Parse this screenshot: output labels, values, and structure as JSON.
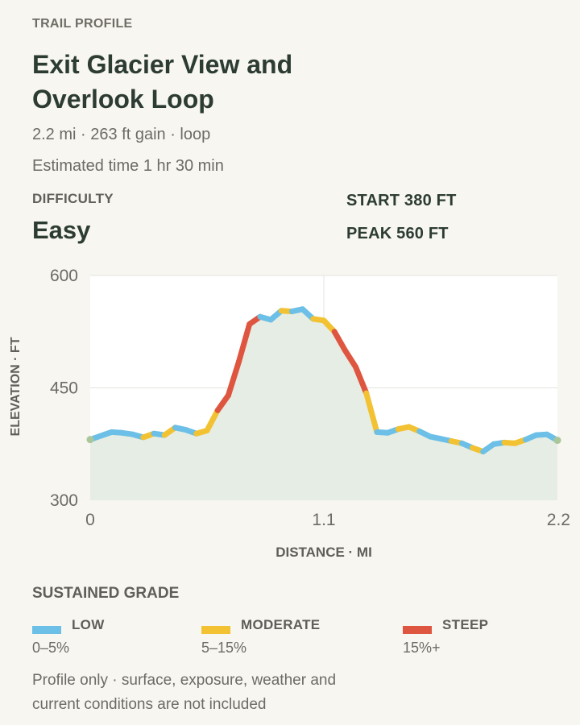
{
  "header": {
    "eyebrow": "TRAIL PROFILE",
    "title": "Exit Glacier View and Overlook Loop",
    "summary": "2.2 mi · 263 ft gain · loop",
    "estimate": "Estimated time 1 hr 30 min"
  },
  "stats": {
    "difficulty_label": "DIFFICULTY",
    "difficulty_value": "Easy",
    "start": "START 380 FT",
    "peak": "PEAK 560 FT"
  },
  "chart_data": {
    "type": "line",
    "xlabel": "DISTANCE · MI",
    "ylabel": "ELEVATION · FT",
    "xlim": [
      0,
      2.2
    ],
    "ylim": [
      300,
      600
    ],
    "xticks": [
      "0",
      "1.1",
      "2.2"
    ],
    "yticks": [
      "600",
      "450",
      "300"
    ],
    "grid": true,
    "area_fill": true,
    "series": [
      {
        "x": [
          0,
          0.05,
          0.1,
          0.15,
          0.2,
          0.25,
          0.3,
          0.35,
          0.4,
          0.45,
          0.5,
          0.55,
          0.6,
          0.65,
          0.7,
          0.75,
          0.8,
          0.85,
          0.9,
          0.95,
          1.0,
          1.05,
          1.1,
          1.15,
          1.2,
          1.25,
          1.3,
          1.35,
          1.4,
          1.45,
          1.5,
          1.55,
          1.6,
          1.65,
          1.7,
          1.75,
          1.8,
          1.85,
          1.9,
          1.95,
          2.0,
          2.05,
          2.1,
          2.15,
          2.2
        ],
        "y": [
          381,
          386,
          391,
          390,
          388,
          384,
          389,
          387,
          397,
          394,
          389,
          393,
          420,
          440,
          485,
          535,
          545,
          541,
          553,
          552,
          555,
          542,
          540,
          525,
          500,
          478,
          443,
          391,
          390,
          395,
          398,
          392,
          385,
          382,
          379,
          376,
          370,
          365,
          375,
          377,
          376,
          381,
          387,
          388,
          380
        ],
        "grade": [
          "low",
          "low",
          "low",
          "low",
          "low",
          "moderate",
          "low",
          "moderate",
          "low",
          "low",
          "moderate",
          "moderate",
          "steep",
          "steep",
          "steep",
          "steep",
          "low",
          "low",
          "moderate",
          "low",
          "low",
          "moderate",
          "moderate",
          "steep",
          "steep",
          "steep",
          "moderate",
          "low",
          "low",
          "moderate",
          "moderate",
          "low",
          "low",
          "low",
          "moderate",
          "low",
          "moderate",
          "low",
          "low",
          "moderate",
          "moderate",
          "low",
          "low",
          "low"
        ]
      }
    ],
    "legend": {
      "title": "SUSTAINED GRADE",
      "items": [
        {
          "key": "low",
          "name": "LOW",
          "range": "0–5%",
          "color": "#6cbfe6"
        },
        {
          "key": "moderate",
          "name": "MODERATE",
          "range": "5–15%",
          "color": "#f2c233"
        },
        {
          "key": "steep",
          "name": "STEEP",
          "range": "15%+",
          "color": "#de5640"
        }
      ]
    },
    "colors": {
      "fill": "#e6ede4",
      "grid": "#e3e4df",
      "plot_bg": "#ffffff",
      "connector": "#a9c79a"
    }
  },
  "footnote": "Profile only · surface, exposure, weather and current conditions are not included"
}
